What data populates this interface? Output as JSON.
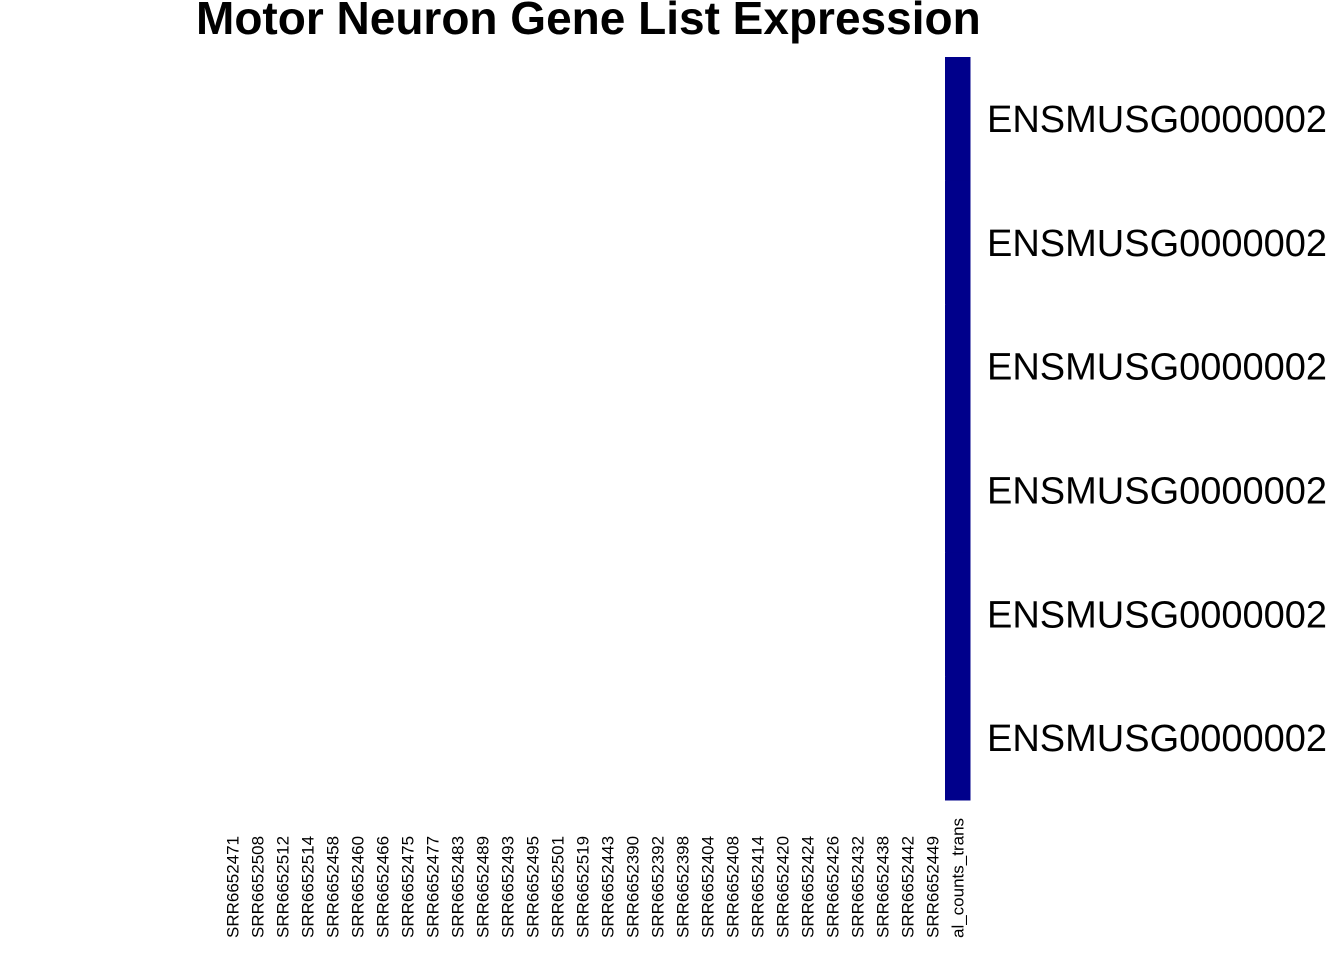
{
  "title": "Motor Neuron Gene List Expression",
  "chart_data": {
    "type": "heatmap",
    "title": "Motor Neuron Gene List Expression",
    "columns": [
      "SRR6652471",
      "SRR6652508",
      "SRR6652512",
      "SRR6652514",
      "SRR6652458",
      "SRR6652460",
      "SRR6652466",
      "SRR6652475",
      "SRR6652477",
      "SRR6652483",
      "SRR6652489",
      "SRR6652493",
      "SRR6652495",
      "SRR6652501",
      "SRR6652519",
      "SRR6652443",
      "SRR6652390",
      "SRR6652392",
      "SRR6652398",
      "SRR6652404",
      "SRR6652408",
      "SRR6652414",
      "SRR6652420",
      "SRR6652424",
      "SRR6652426",
      "SRR6652432",
      "SRR6652438",
      "SRR6652442",
      "SRR6652449",
      "al_counts_trans"
    ],
    "rows": [
      "ENSMUSG0000002",
      "ENSMUSG0000002",
      "ENSMUSG0000002",
      "ENSMUSG0000002",
      "ENSMUSG0000002",
      "ENSMUSG0000002"
    ],
    "cell_colors": {
      "low": "#ffffff",
      "high": "#00008b"
    },
    "high_column": "al_counts_trans",
    "legend": "none"
  }
}
